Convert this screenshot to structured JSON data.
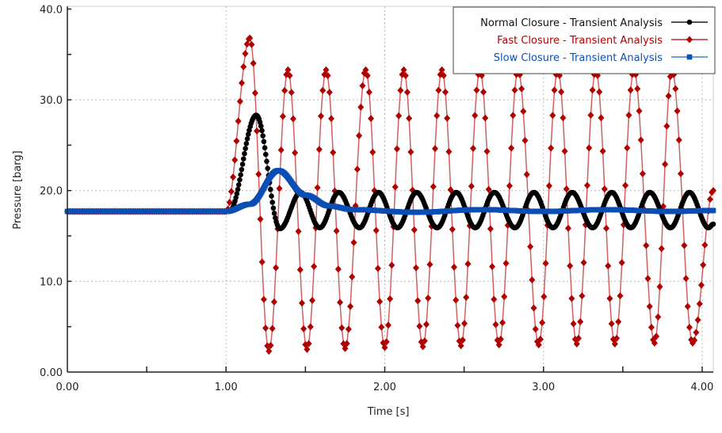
{
  "chart_data": {
    "type": "line",
    "title": "",
    "xlabel": "Time [s]",
    "ylabel": "Pressure [barg]",
    "xlim": [
      0,
      4.07
    ],
    "ylim": [
      0,
      40.3
    ],
    "grid": true,
    "legend_position": "top-right",
    "x_ticks": [
      0,
      1,
      2,
      3,
      4
    ],
    "x_tick_labels": [
      "0.00",
      "1.00",
      "2.00",
      "3.00",
      "4.00"
    ],
    "y_ticks": [
      0,
      10,
      20,
      30,
      40
    ],
    "y_tick_labels": [
      "0.00",
      "10.0",
      "20.0",
      "30.0",
      "40.0"
    ],
    "series": [
      {
        "name": "Normal Closure - Transient Analysis",
        "color": "#000000",
        "line_color": "#555555",
        "marker": "circle",
        "extrema_points": [
          [
            0,
            17.7
          ],
          [
            1.02,
            17.7
          ],
          [
            1.19,
            28.3
          ],
          [
            1.34,
            15.8
          ],
          [
            1.47,
            19.8
          ],
          [
            1.59,
            15.9
          ],
          [
            1.71,
            19.8
          ],
          [
            1.84,
            15.9
          ],
          [
            1.96,
            19.8
          ],
          [
            2.08,
            15.9
          ],
          [
            2.2,
            19.8
          ],
          [
            2.33,
            15.9
          ],
          [
            2.45,
            19.8
          ],
          [
            2.57,
            15.9
          ],
          [
            2.69,
            19.8
          ],
          [
            2.82,
            15.9
          ],
          [
            2.94,
            19.8
          ],
          [
            3.06,
            15.9
          ],
          [
            3.18,
            19.8
          ],
          [
            3.31,
            15.9
          ],
          [
            3.43,
            19.8
          ],
          [
            3.55,
            15.9
          ],
          [
            3.67,
            19.8
          ],
          [
            3.8,
            15.9
          ],
          [
            3.92,
            19.8
          ],
          [
            4.04,
            15.9
          ],
          [
            4.07,
            16.3
          ]
        ]
      },
      {
        "name": "Fast Closure - Transient Analysis",
        "color": "#b00000",
        "line_color": "#d06060",
        "marker": "diamond",
        "extrema_points": [
          [
            0,
            17.7
          ],
          [
            1.0,
            17.7
          ],
          [
            1.15,
            36.8
          ],
          [
            1.27,
            2.3
          ],
          [
            1.39,
            33.3
          ],
          [
            1.51,
            2.5
          ],
          [
            1.63,
            33.3
          ],
          [
            1.75,
            2.6
          ],
          [
            1.88,
            33.3
          ],
          [
            2.0,
            2.7
          ],
          [
            2.12,
            33.3
          ],
          [
            2.24,
            2.8
          ],
          [
            2.36,
            33.3
          ],
          [
            2.48,
            2.9
          ],
          [
            2.6,
            33.3
          ],
          [
            2.72,
            3.0
          ],
          [
            2.84,
            33.3
          ],
          [
            2.97,
            3.0
          ],
          [
            3.09,
            33.3
          ],
          [
            3.21,
            3.1
          ],
          [
            3.33,
            33.3
          ],
          [
            3.45,
            3.1
          ],
          [
            3.57,
            33.3
          ],
          [
            3.7,
            3.2
          ],
          [
            3.81,
            33.3
          ],
          [
            3.94,
            3.2
          ],
          [
            4.07,
            20.0
          ]
        ]
      },
      {
        "name": "Slow Closure - Transient Analysis",
        "color": "#0b4fb5",
        "line_color": "#6f9be0",
        "marker": "square",
        "extrema_points": [
          [
            0,
            17.7
          ],
          [
            1.0,
            17.7
          ],
          [
            1.15,
            18.5
          ],
          [
            1.33,
            22.2
          ],
          [
            1.5,
            19.5
          ],
          [
            1.65,
            18.3
          ],
          [
            1.8,
            17.9
          ],
          [
            2.2,
            17.6
          ],
          [
            2.6,
            17.9
          ],
          [
            3.0,
            17.7
          ],
          [
            3.4,
            17.9
          ],
          [
            3.8,
            17.7
          ],
          [
            4.07,
            17.8
          ]
        ]
      }
    ]
  }
}
